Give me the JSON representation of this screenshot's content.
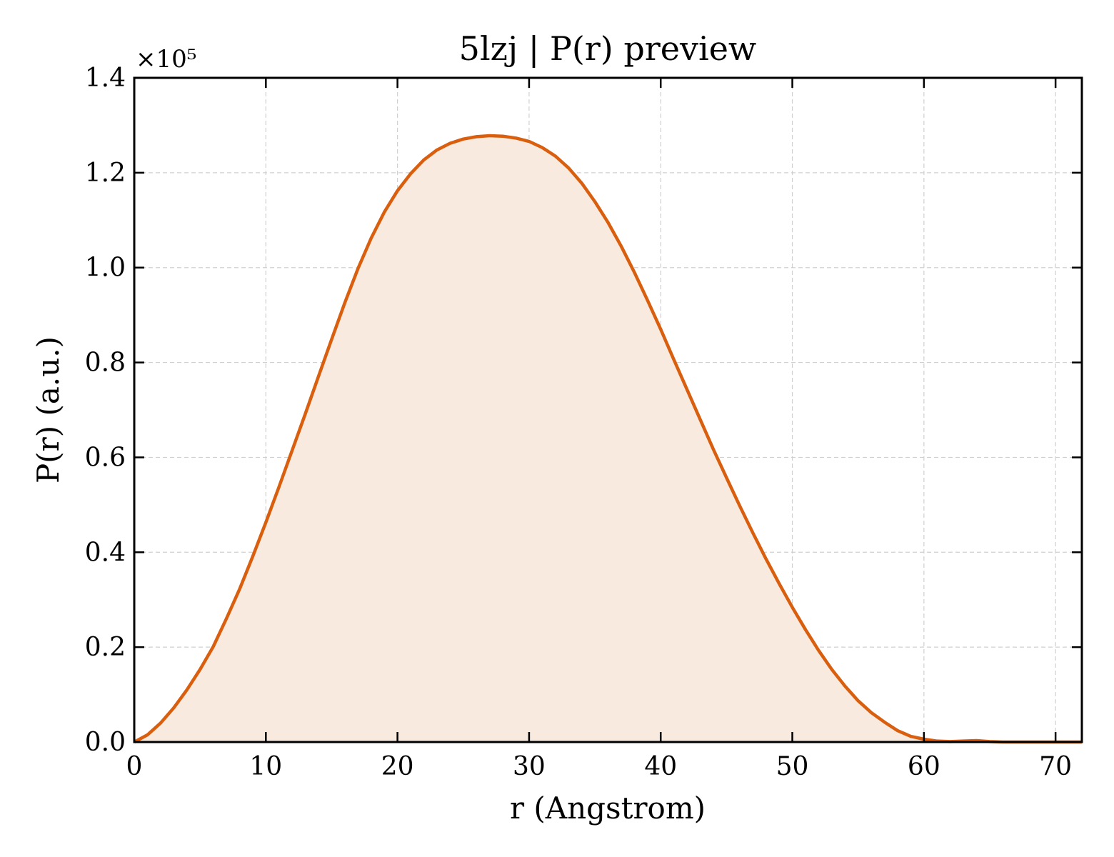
{
  "chart_data": {
    "type": "area",
    "title": "5lzj | P(r) preview",
    "xlabel": "r (Angstrom)",
    "ylabel": "P(r) (a.u.)",
    "y_multiplier_label": "×10⁵",
    "xlim": [
      0,
      72
    ],
    "ylim": [
      0,
      1.4
    ],
    "x_ticks": [
      0,
      10,
      20,
      30,
      40,
      50,
      60,
      70
    ],
    "x_tick_labels": [
      "0",
      "10",
      "20",
      "30",
      "40",
      "50",
      "60",
      "70"
    ],
    "y_ticks": [
      0.0,
      0.2,
      0.4,
      0.6,
      0.8,
      1.0,
      1.2,
      1.4
    ],
    "y_tick_labels": [
      "0.0",
      "0.2",
      "0.4",
      "0.6",
      "0.8",
      "1.0",
      "1.2",
      "1.4"
    ],
    "grid": true,
    "colors": {
      "line": "#d95f0e",
      "fill": "#f8eadf"
    },
    "series": [
      {
        "x": [
          0,
          1,
          2,
          3,
          4,
          5,
          6,
          7,
          8,
          9,
          10,
          11,
          12,
          13,
          14,
          15,
          16,
          17,
          18,
          19,
          20,
          21,
          22,
          23,
          24,
          25,
          26,
          27,
          28,
          29,
          30,
          31,
          32,
          33,
          34,
          35,
          36,
          37,
          38,
          39,
          40,
          41,
          42,
          43,
          44,
          45,
          46,
          47,
          48,
          49,
          50,
          51,
          52,
          53,
          54,
          55,
          56,
          57,
          58,
          59,
          60,
          61,
          62,
          63,
          64,
          65,
          66,
          67,
          68,
          69,
          70,
          71,
          72
        ],
        "values": [
          0.0,
          0.015,
          0.04,
          0.072,
          0.11,
          0.153,
          0.201,
          0.26,
          0.322,
          0.391,
          0.463,
          0.538,
          0.615,
          0.692,
          0.771,
          0.849,
          0.926,
          0.998,
          1.062,
          1.117,
          1.162,
          1.198,
          1.227,
          1.248,
          1.262,
          1.271,
          1.276,
          1.278,
          1.277,
          1.273,
          1.266,
          1.253,
          1.235,
          1.21,
          1.178,
          1.139,
          1.095,
          1.045,
          0.99,
          0.931,
          0.87,
          0.806,
          0.743,
          0.68,
          0.617,
          0.557,
          0.498,
          0.441,
          0.386,
          0.334,
          0.284,
          0.237,
          0.193,
          0.153,
          0.118,
          0.087,
          0.062,
          0.042,
          0.024,
          0.012,
          0.006,
          0.002,
          0.001,
          0.002,
          0.003,
          0.001,
          0.0,
          0.0,
          0.0,
          0.0,
          0.0,
          0.0,
          0.0
        ]
      }
    ]
  }
}
